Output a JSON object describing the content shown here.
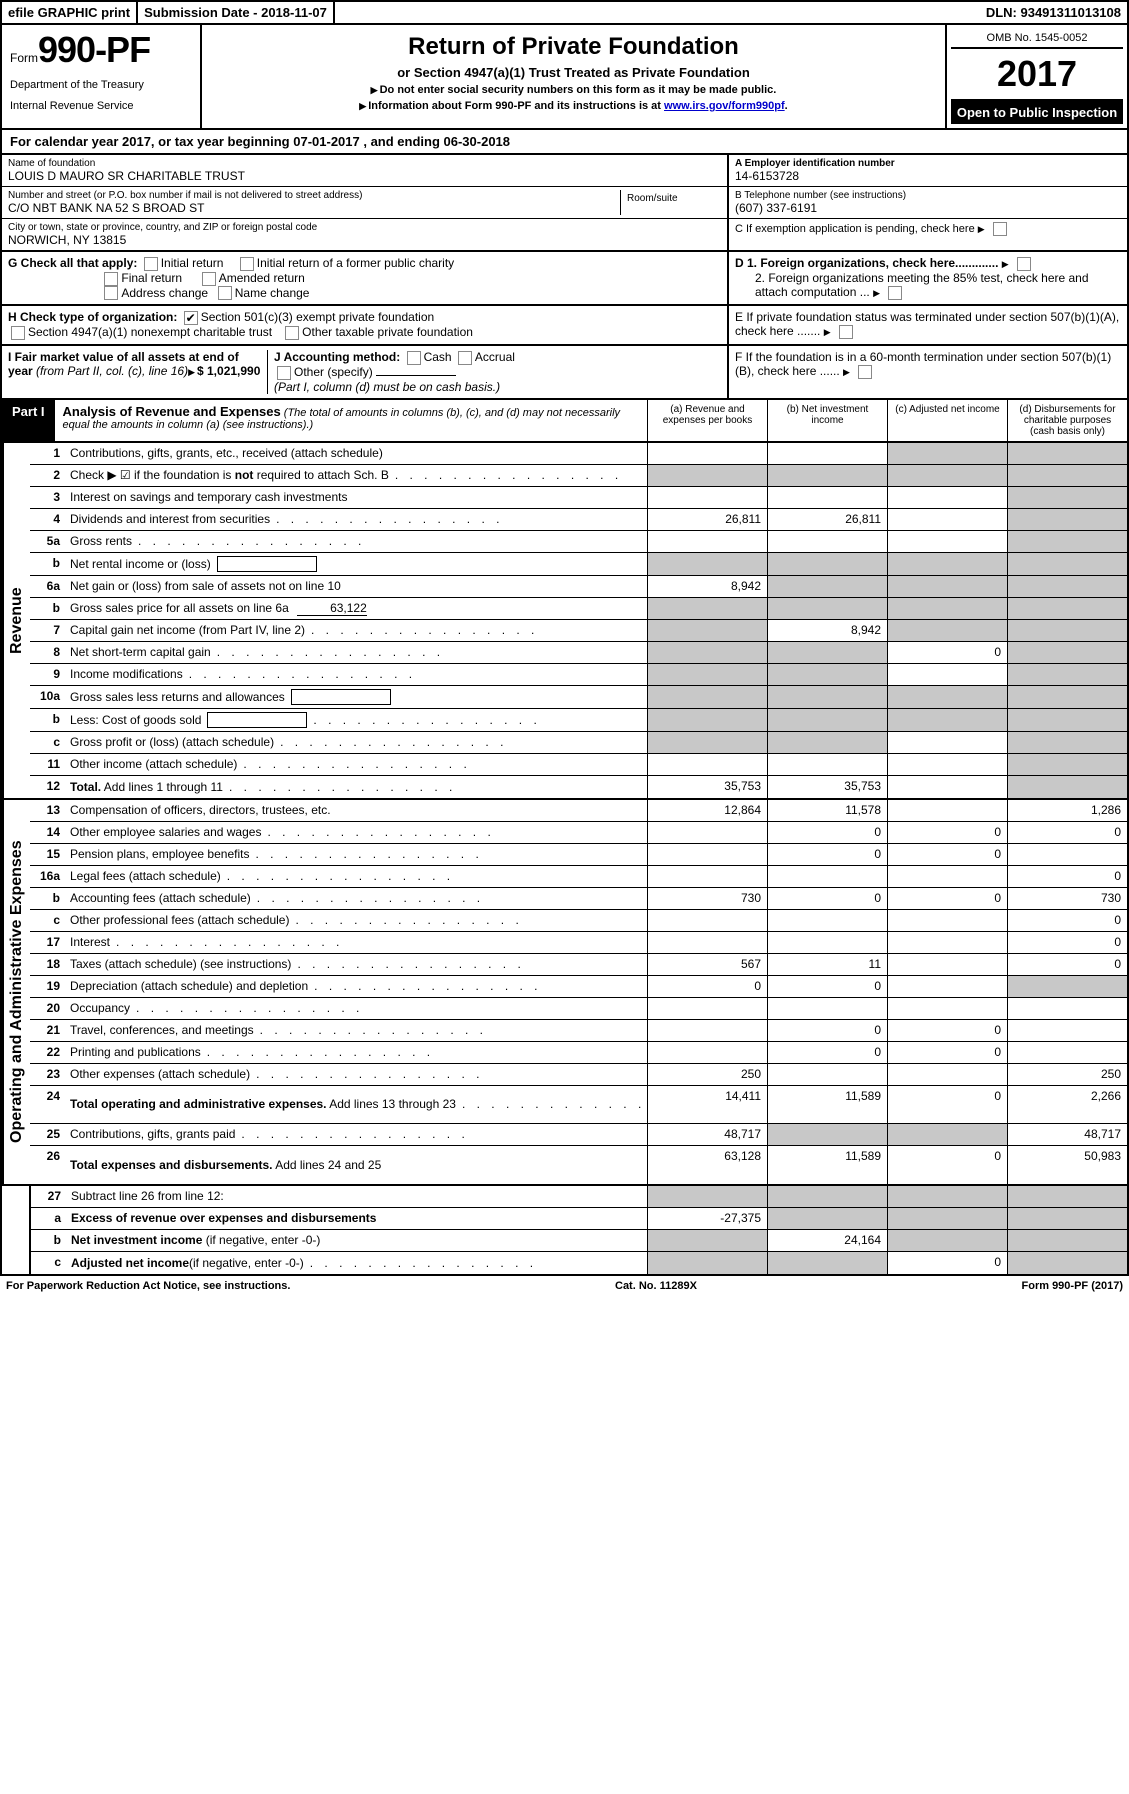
{
  "topbar": {
    "efile": "efile GRAPHIC print",
    "submission": "Submission Date - 2018-11-07",
    "dln": "DLN: 93491311013108"
  },
  "header": {
    "form_prefix": "Form",
    "form_num": "990-PF",
    "dept1": "Department of the Treasury",
    "dept2": "Internal Revenue Service",
    "title": "Return of Private Foundation",
    "subtitle": "or Section 4947(a)(1) Trust Treated as Private Foundation",
    "note1": "Do not enter social security numbers on this form as it may be made public.",
    "note2_pre": "Information about Form 990-PF and its instructions is at ",
    "note2_link": "www.irs.gov/form990pf",
    "omb": "OMB No. 1545-0052",
    "year": "2017",
    "inspection": "Open to Public Inspection"
  },
  "cal_year": {
    "pre": "For calendar year 2017, or tax year beginning ",
    "begin": "07-01-2017",
    "mid": " , and ending ",
    "end": "06-30-2018"
  },
  "info": {
    "name_lbl": "Name of foundation",
    "name": "LOUIS D MAURO SR CHARITABLE TRUST",
    "ein_lbl": "A Employer identification number",
    "ein": "14-6153728",
    "addr_lbl": "Number and street (or P.O. box number if mail is not delivered to street address)",
    "addr": "C/O NBT BANK NA 52 S BROAD ST",
    "room_lbl": "Room/suite",
    "tel_lbl": "B Telephone number (see instructions)",
    "tel": "(607) 337-6191",
    "city_lbl": "City or town, state or province, country, and ZIP or foreign postal code",
    "city": "NORWICH, NY  13815",
    "c_lbl": "C If exemption application is pending, check here"
  },
  "checks": {
    "g_lbl": "G Check all that apply:",
    "g1": "Initial return",
    "g2": "Initial return of a former public charity",
    "g3": "Final return",
    "g4": "Amended return",
    "g5": "Address change",
    "g6": "Name change",
    "h_lbl": "H Check type of organization:",
    "h1": "Section 501(c)(3) exempt private foundation",
    "h2": "Section 4947(a)(1) nonexempt charitable trust",
    "h3": "Other taxable private foundation",
    "i_lbl": "I Fair market value of all assets at end of year ",
    "i_sub": "(from Part II, col. (c), line 16)",
    "i_val": "$  1,021,990",
    "j_lbl": "J Accounting method:",
    "j1": "Cash",
    "j2": "Accrual",
    "j3": "Other (specify)",
    "j_note": "(Part I, column (d) must be on cash basis.)",
    "d1": "D 1. Foreign organizations, check here.............",
    "d2": "2. Foreign organizations meeting the 85% test, check here and attach computation ...",
    "e": "E If private foundation status was terminated under section 507(b)(1)(A), check here .......",
    "f": "F If the foundation is in a 60-month termination under section 507(b)(1)(B), check here ......"
  },
  "part1": {
    "label": "Part I",
    "title": "Analysis of Revenue and Expenses",
    "title_note": " (The total of amounts in columns (b), (c), and (d) may not necessarily equal the amounts in column (a) (see instructions).)",
    "col_a": "(a)  Revenue and expenses per books",
    "col_b": "(b)  Net investment income",
    "col_c": "(c)  Adjusted net income",
    "col_d": "(d)  Disbursements for charitable purposes (cash basis only)"
  },
  "sides": {
    "revenue": "Revenue",
    "expenses": "Operating and Administrative Expenses"
  },
  "lines": [
    {
      "n": "1",
      "d": "Contributions, gifts, grants, etc., received (attach schedule)",
      "a": "",
      "b": "",
      "c": "g",
      "dd": "g",
      "nodots": true
    },
    {
      "n": "2",
      "d": "Check ▶ ☑ if the foundation is <b>not</b> required to attach Sch. B",
      "a": "g",
      "b": "g",
      "c": "g",
      "dd": "g",
      "nodots": false,
      "dots": true
    },
    {
      "n": "3",
      "d": "Interest on savings and temporary cash investments",
      "a": "",
      "b": "",
      "c": "",
      "dd": "g"
    },
    {
      "n": "4",
      "d": "Dividends and interest from securities",
      "a": "26,811",
      "b": "26,811",
      "c": "",
      "dd": "g",
      "dots": true
    },
    {
      "n": "5a",
      "d": "Gross rents",
      "a": "",
      "b": "",
      "c": "",
      "dd": "g",
      "dots": true
    },
    {
      "n": "b",
      "d": "Net rental income or (loss)",
      "a": "g",
      "b": "g",
      "c": "g",
      "dd": "g",
      "inline": true
    },
    {
      "n": "6a",
      "d": "Net gain or (loss) from sale of assets not on line 10",
      "a": "8,942",
      "b": "g",
      "c": "g",
      "dd": "g"
    },
    {
      "n": "b",
      "d": "Gross sales price for all assets on line 6a",
      "a": "g",
      "b": "g",
      "c": "g",
      "dd": "g",
      "inline_val": "63,122"
    },
    {
      "n": "7",
      "d": "Capital gain net income (from Part IV, line 2)",
      "a": "g",
      "b": "8,942",
      "c": "g",
      "dd": "g",
      "dots": true
    },
    {
      "n": "8",
      "d": "Net short-term capital gain",
      "a": "g",
      "b": "g",
      "c": "0",
      "dd": "g",
      "dots": true
    },
    {
      "n": "9",
      "d": "Income modifications",
      "a": "g",
      "b": "g",
      "c": "",
      "dd": "g",
      "dots": true
    },
    {
      "n": "10a",
      "d": "Gross sales less returns and allowances",
      "a": "g",
      "b": "g",
      "c": "g",
      "dd": "g",
      "inline": true
    },
    {
      "n": "b",
      "d": "Less: Cost of goods sold",
      "a": "g",
      "b": "g",
      "c": "g",
      "dd": "g",
      "inline": true,
      "dots": true
    },
    {
      "n": "c",
      "d": "Gross profit or (loss) (attach schedule)",
      "a": "g",
      "b": "g",
      "c": "",
      "dd": "g",
      "dots": true
    },
    {
      "n": "11",
      "d": "Other income (attach schedule)",
      "a": "",
      "b": "",
      "c": "",
      "dd": "g",
      "dots": true
    },
    {
      "n": "12",
      "d": "<b>Total.</b> Add lines 1 through 11",
      "a": "35,753",
      "b": "35,753",
      "c": "",
      "dd": "g",
      "dots": true
    }
  ],
  "exp_lines": [
    {
      "n": "13",
      "d": "Compensation of officers, directors, trustees, etc.",
      "a": "12,864",
      "b": "11,578",
      "c": "",
      "dd": "1,286"
    },
    {
      "n": "14",
      "d": "Other employee salaries and wages",
      "a": "",
      "b": "0",
      "c": "0",
      "dd": "0",
      "dots": true
    },
    {
      "n": "15",
      "d": "Pension plans, employee benefits",
      "a": "",
      "b": "0",
      "c": "0",
      "dd": "",
      "dots": true
    },
    {
      "n": "16a",
      "d": "Legal fees (attach schedule)",
      "a": "",
      "b": "",
      "c": "",
      "dd": "0",
      "dots": true
    },
    {
      "n": "b",
      "d": "Accounting fees (attach schedule)",
      "a": "730",
      "b": "0",
      "c": "0",
      "dd": "730",
      "dots": true
    },
    {
      "n": "c",
      "d": "Other professional fees (attach schedule)",
      "a": "",
      "b": "",
      "c": "",
      "dd": "0",
      "dots": true
    },
    {
      "n": "17",
      "d": "Interest",
      "a": "",
      "b": "",
      "c": "",
      "dd": "0",
      "dots": true
    },
    {
      "n": "18",
      "d": "Taxes (attach schedule) (see instructions)",
      "a": "567",
      "b": "11",
      "c": "",
      "dd": "0",
      "dots": true
    },
    {
      "n": "19",
      "d": "Depreciation (attach schedule) and depletion",
      "a": "0",
      "b": "0",
      "c": "",
      "dd": "g",
      "dots": true
    },
    {
      "n": "20",
      "d": "Occupancy",
      "a": "",
      "b": "",
      "c": "",
      "dd": "",
      "dots": true
    },
    {
      "n": "21",
      "d": "Travel, conferences, and meetings",
      "a": "",
      "b": "0",
      "c": "0",
      "dd": "",
      "dots": true
    },
    {
      "n": "22",
      "d": "Printing and publications",
      "a": "",
      "b": "0",
      "c": "0",
      "dd": "",
      "dots": true
    },
    {
      "n": "23",
      "d": "Other expenses (attach schedule)",
      "a": "250",
      "b": "",
      "c": "",
      "dd": "250",
      "dots": true
    },
    {
      "n": "24",
      "d": "<b>Total operating and administrative expenses.</b> Add lines 13 through 23",
      "a": "14,411",
      "b": "11,589",
      "c": "0",
      "dd": "2,266",
      "dots": true,
      "tall": true
    },
    {
      "n": "25",
      "d": "Contributions, gifts, grants paid",
      "a": "48,717",
      "b": "g",
      "c": "g",
      "dd": "48,717",
      "dots": true
    },
    {
      "n": "26",
      "d": "<b>Total expenses and disbursements.</b> Add lines 24 and 25",
      "a": "63,128",
      "b": "11,589",
      "c": "0",
      "dd": "50,983",
      "tall": true
    }
  ],
  "bottom_lines": [
    {
      "n": "27",
      "d": "Subtract line 26 from line 12:",
      "a": "g",
      "b": "g",
      "c": "g",
      "dd": "g"
    },
    {
      "n": "a",
      "d": "<b>Excess of revenue over expenses and disbursements</b>",
      "a": "-27,375",
      "b": "g",
      "c": "g",
      "dd": "g"
    },
    {
      "n": "b",
      "d": "<b>Net investment income</b> (if negative, enter -0-)",
      "a": "g",
      "b": "24,164",
      "c": "g",
      "dd": "g"
    },
    {
      "n": "c",
      "d": "<b>Adjusted net income</b>(if negative, enter -0-)",
      "a": "g",
      "b": "g",
      "c": "0",
      "dd": "g",
      "dots": true
    }
  ],
  "footer": {
    "left": "For Paperwork Reduction Act Notice, see instructions.",
    "mid": "Cat. No. 11289X",
    "right": "Form 990-PF (2017)"
  }
}
